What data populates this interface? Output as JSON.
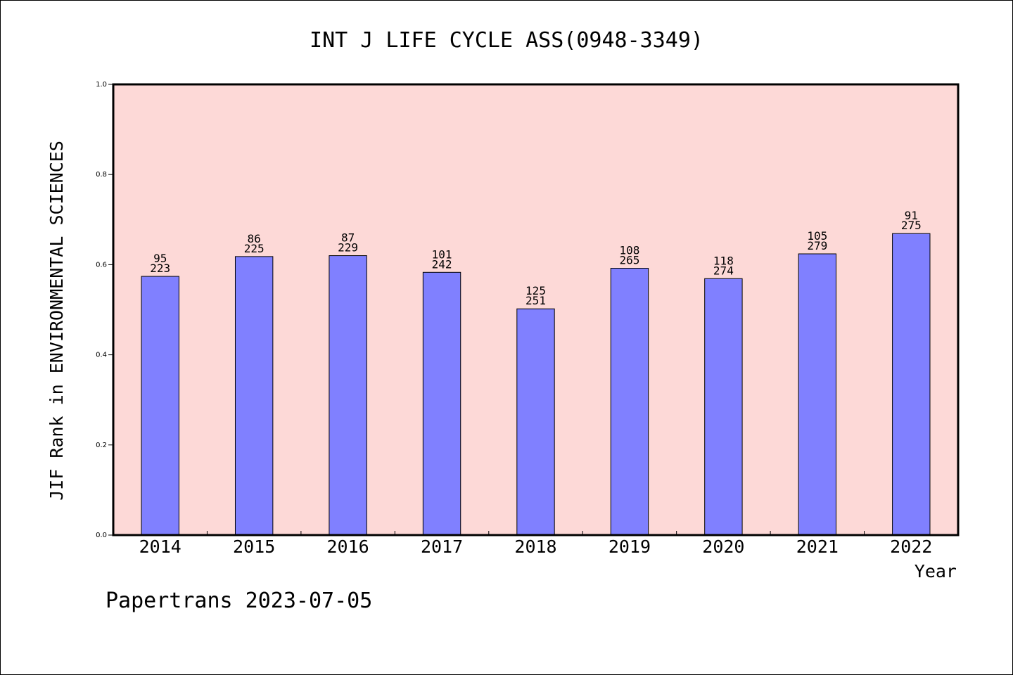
{
  "chart_data": {
    "type": "bar",
    "title": "INT J LIFE CYCLE ASS(0948-3349)",
    "ylabel": "JIF Rank in ENVIRONMENTAL SCIENCES",
    "xlabel": "Year",
    "categories": [
      "2014",
      "2015",
      "2016",
      "2017",
      "2018",
      "2019",
      "2020",
      "2021",
      "2022"
    ],
    "values": [
      0.574,
      0.618,
      0.62,
      0.583,
      0.502,
      0.592,
      0.569,
      0.624,
      0.669
    ],
    "bar_labels": [
      {
        "rank": "95",
        "total": "223"
      },
      {
        "rank": "86",
        "total": "225"
      },
      {
        "rank": "87",
        "total": "229"
      },
      {
        "rank": "101",
        "total": "242"
      },
      {
        "rank": "125",
        "total": "251"
      },
      {
        "rank": "108",
        "total": "265"
      },
      {
        "rank": "118",
        "total": "274"
      },
      {
        "rank": "105",
        "total": "279"
      },
      {
        "rank": "91",
        "total": "275"
      }
    ],
    "ylim": [
      0,
      1.0
    ],
    "yticks": [
      "0.0",
      "0.2",
      "0.4",
      "0.6",
      "0.8",
      "1.0"
    ],
    "grid": false,
    "colors": {
      "plot_background": "#fdd9d7",
      "bar": "#8080ff",
      "axis": "#000000"
    }
  },
  "footer": "Papertrans 2023-07-05"
}
